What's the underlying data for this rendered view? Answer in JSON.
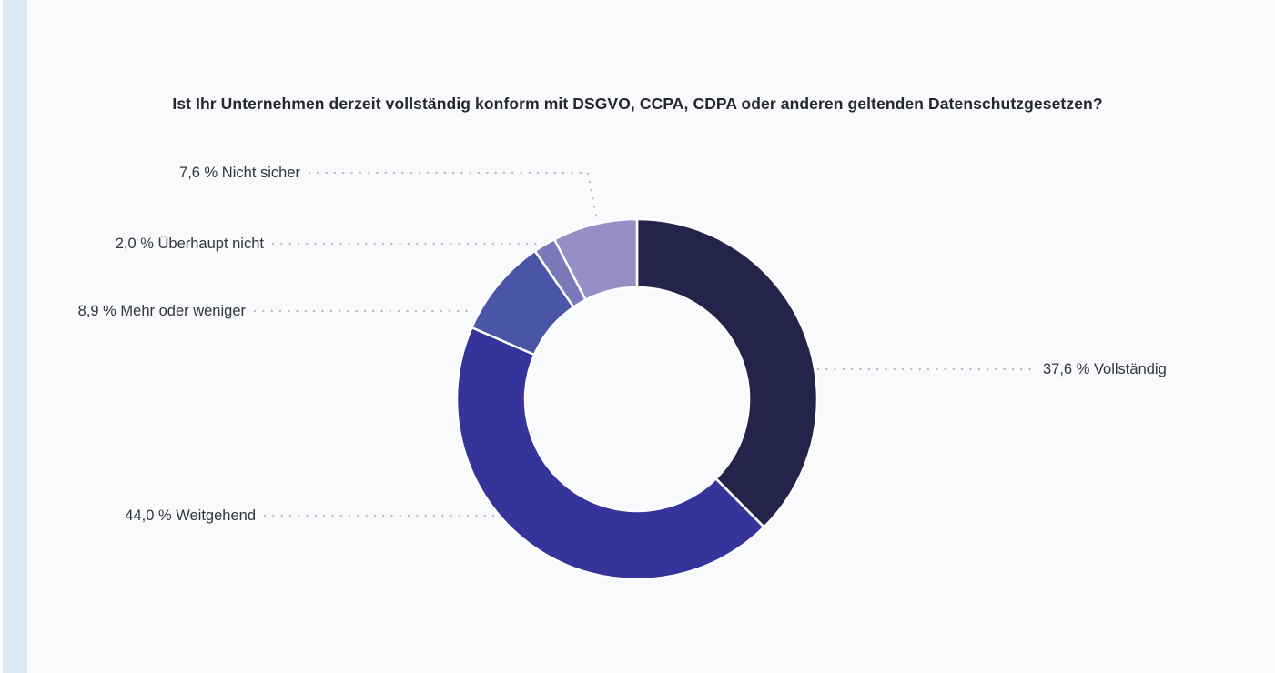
{
  "page": {
    "background": "#f8fafc",
    "accent_bar_color": "#dce8f2",
    "title_color": "#24272c",
    "label_color": "#32363c"
  },
  "chart_data": {
    "type": "pie",
    "subtype": "donut",
    "title": "Ist Ihr Unternehmen derzeit vollständig konform mit DSGVO, CCPA, CDPA oder anderen geltenden Datenschutzgesetzen?",
    "unit": "%",
    "decimal_separator": ",",
    "start_angle_deg": 0,
    "direction": "clockwise",
    "inner_radius_ratio": 0.62,
    "legend_position": "none",
    "grid": false,
    "separator_color": "#ffffff",
    "leader_line_color": "#b4bbc3",
    "slices": [
      {
        "id": "vollstaendig",
        "label": "Vollständig",
        "value": 37.6,
        "display": "37,6 % Vollständig",
        "color": "#252349",
        "label_side": "right"
      },
      {
        "id": "weitgehend",
        "label": "Weitgehend",
        "value": 44.0,
        "display": "44,0 % Weitgehend",
        "color": "#34349b",
        "label_side": "left"
      },
      {
        "id": "mehr-oder-weniger",
        "label": "Mehr oder weniger",
        "value": 8.9,
        "display": "8,9 % Mehr oder weniger",
        "color": "#4a55a7",
        "label_side": "left"
      },
      {
        "id": "ueberhaupt-nicht",
        "label": "Überhaupt nicht",
        "value": 2.0,
        "display": "2,0 % Überhaupt nicht",
        "color": "#7a78b8",
        "label_side": "left"
      },
      {
        "id": "nicht-sicher",
        "label": "Nicht sicher",
        "value": 7.6,
        "display": "7,6 % Nicht sicher",
        "color": "#968fc5",
        "label_side": "left"
      }
    ]
  }
}
